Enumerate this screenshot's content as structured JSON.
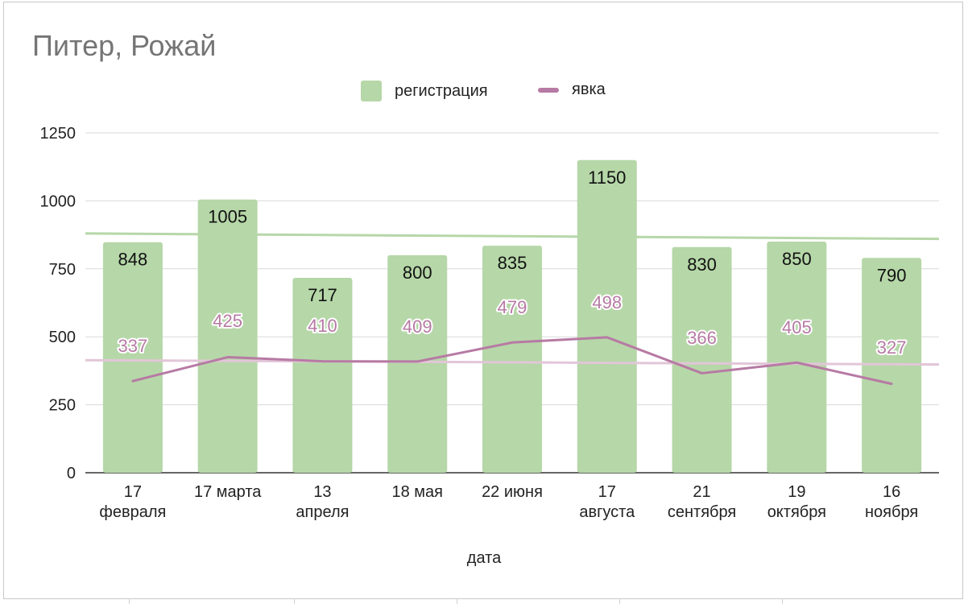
{
  "chart_data": {
    "type": "bar",
    "title": "Питер, Рожай",
    "xlabel": "дата",
    "ylabel": "",
    "ylim": [
      0,
      1250
    ],
    "yticks": [
      0,
      250,
      500,
      750,
      1000,
      1250
    ],
    "grid": true,
    "legend_position": "top-center",
    "categories": [
      [
        "17",
        "февраля"
      ],
      [
        "17 марта"
      ],
      [
        "13",
        "апреля"
      ],
      [
        "18 мая"
      ],
      [
        "22 июня"
      ],
      [
        "17",
        "августа"
      ],
      [
        "21",
        "сентября"
      ],
      [
        "19",
        "октября"
      ],
      [
        "16",
        "ноября"
      ]
    ],
    "series": [
      {
        "name": "регистрация",
        "type": "bar",
        "color": "#b6d7a8",
        "values": [
          848,
          1005,
          717,
          800,
          835,
          1150,
          830,
          850,
          790
        ],
        "trendline": {
          "color": "#b6d7a8",
          "start": 880,
          "end": 860
        }
      },
      {
        "name": "явка",
        "type": "line",
        "color": "#b77aa4",
        "values": [
          337,
          425,
          410,
          409,
          479,
          498,
          366,
          405,
          327
        ],
        "trendline": {
          "color": "#e2c6d8",
          "start": 414,
          "end": 398
        }
      }
    ]
  }
}
